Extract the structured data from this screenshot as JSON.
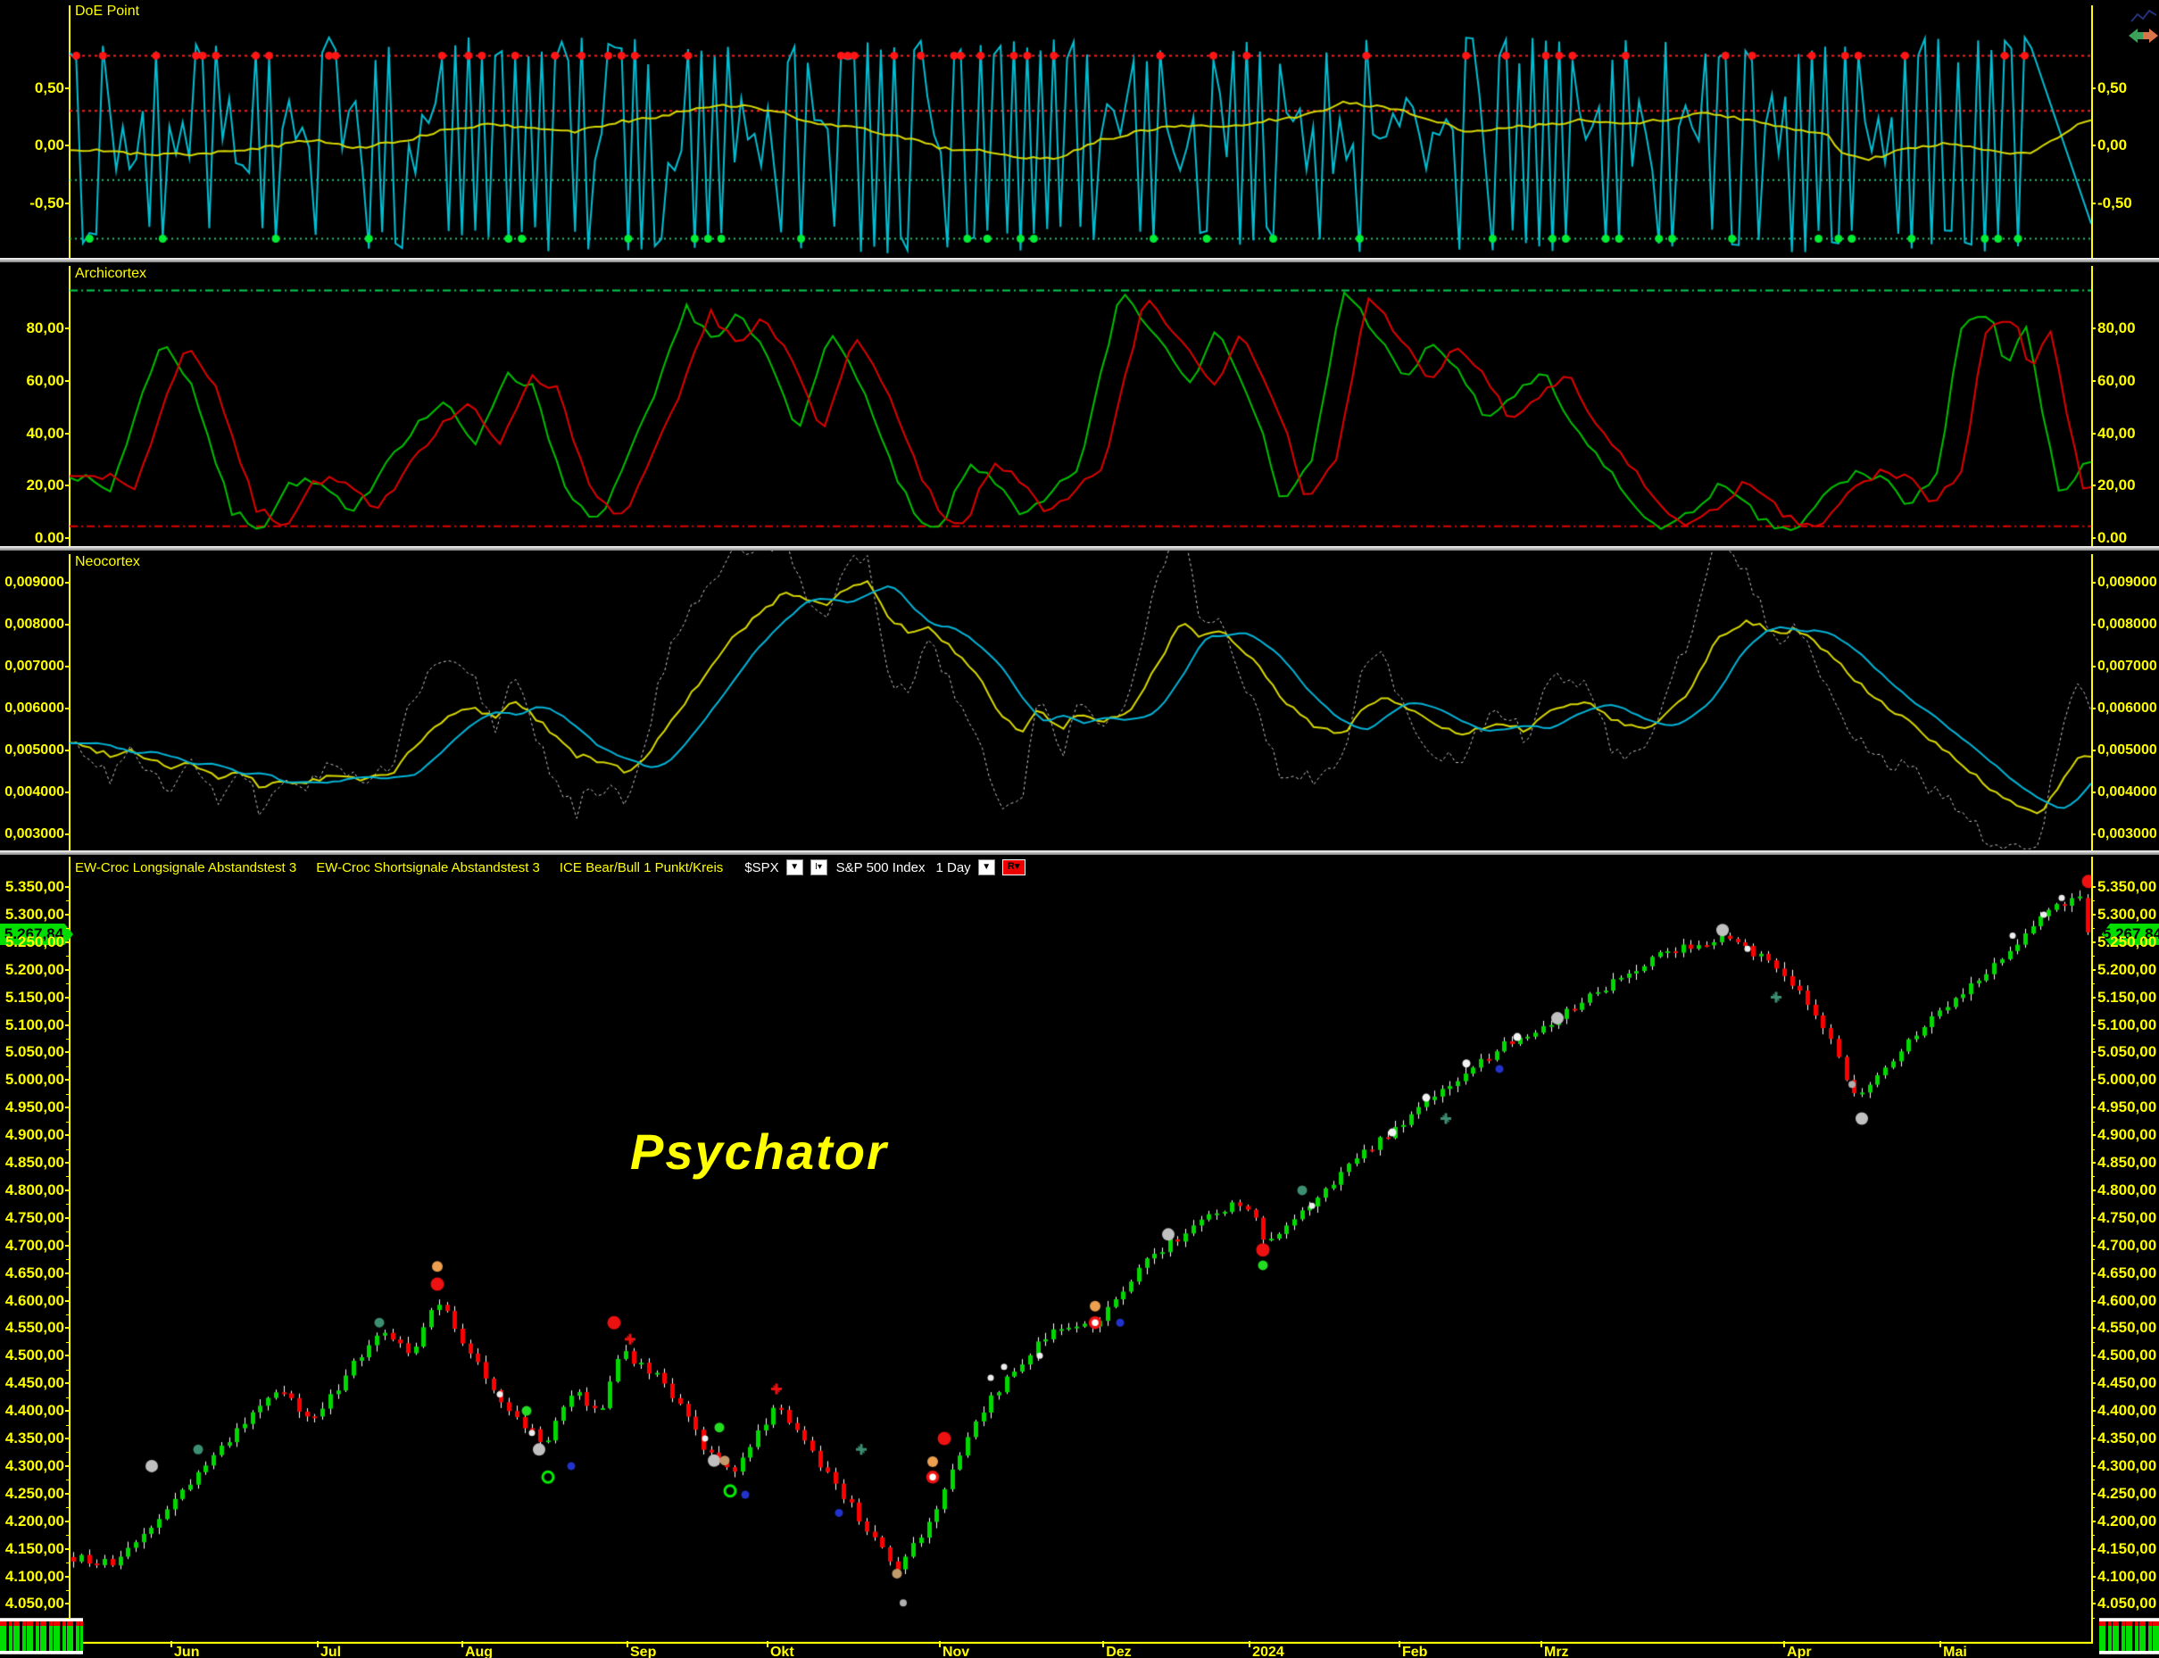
{
  "app": {
    "watermark": "Psychator",
    "last_price_tag": "5.267,84",
    "accent_colors": {
      "axis_yellow": "#ffff00",
      "cyan_line": "#00bfd4",
      "yellow_line": "#d8d800",
      "green_line": "#00c800",
      "red_line": "#e00000",
      "gray_dashed": "#c0c0c0",
      "candle_up": "#00d800",
      "candle_down": "#ff0000",
      "wick": "#ffffff",
      "tag_green": "#00dd00",
      "divider_gray": "#b9b9b9"
    }
  },
  "panel_doe": {
    "title": "DoE Point",
    "y_labels": [
      "0,50",
      "0,00",
      "-0,50"
    ],
    "y_values": [
      0.5,
      0.0,
      -0.5
    ],
    "upper_bands": [
      0.78,
      0.3
    ],
    "lower_bands": [
      -0.3,
      -0.81
    ]
  },
  "panel_archicortex": {
    "title": "Archicortex",
    "y_labels": [
      "80,00",
      "60,00",
      "40,00",
      "20,00",
      "0.00"
    ],
    "y_values": [
      80,
      60,
      40,
      20,
      0
    ],
    "upper_band": 94.5,
    "lower_band": 4.5
  },
  "panel_neocortex": {
    "title": "Neocortex",
    "y_labels": [
      "0,009000",
      "0,008000",
      "0,007000",
      "0,006000",
      "0,005000",
      "0,004000",
      "0,003000"
    ],
    "y_values": [
      0.009,
      0.008,
      0.007,
      0.006,
      0.005,
      0.004,
      0.003
    ]
  },
  "panel_main": {
    "header": {
      "study1": "EW-Croc Longsignale Abstandstest 3",
      "study2": "EW-Croc Shortsignale Abstandstest 3",
      "study3": "ICE Bear/Bull 1 Punkt/Kreis",
      "symbol": "$SPX",
      "index_name": "S&P 500 Index",
      "period": "1 Day",
      "r_button": "R",
      "dropdown_glyph": "▼",
      "i_button": "I▾"
    },
    "y_labels": [
      "5.350,00",
      "5.300,00",
      "5.250,00",
      "5.200,00",
      "5.150,00",
      "5.100,00",
      "5.050,00",
      "5.000,00",
      "4.950,00",
      "4.900,00",
      "4.850,00",
      "4.800,00",
      "4.750,00",
      "4.700,00",
      "4.650,00",
      "4.600,00",
      "4.550,00",
      "4.500,00",
      "4.450,00",
      "4.400,00",
      "4.350,00",
      "4.300,00",
      "4.250,00",
      "4.200,00",
      "4.150,00",
      "4.100,00",
      "4.050,00"
    ],
    "y_values": [
      5350,
      5300,
      5250,
      5200,
      5150,
      5100,
      5050,
      5000,
      4950,
      4900,
      4850,
      4800,
      4750,
      4700,
      4650,
      4600,
      4550,
      4500,
      4450,
      4400,
      4350,
      4300,
      4250,
      4200,
      4150,
      4100,
      4050
    ],
    "months": [
      {
        "label": "Jun",
        "f": 0.0499
      },
      {
        "label": "Jul",
        "f": 0.1223
      },
      {
        "label": "Aug",
        "f": 0.1938
      },
      {
        "label": "Sep",
        "f": 0.2755
      },
      {
        "label": "Okt",
        "f": 0.3448
      },
      {
        "label": "Nov",
        "f": 0.43
      },
      {
        "label": "Dez",
        "f": 0.5109
      },
      {
        "label": "2024",
        "f": 0.5833
      },
      {
        "label": "Feb",
        "f": 0.6574
      },
      {
        "label": "Mrz",
        "f": 0.7276
      },
      {
        "label": "Apr",
        "f": 0.8477
      },
      {
        "label": "Mai",
        "f": 0.925
      }
    ]
  },
  "legend_rows": [
    {
      "color": "#ffffff",
      "h": 3
    },
    {
      "color": "#ee0000",
      "h": 5
    },
    {
      "color": "#00dd00",
      "h": 5
    },
    {
      "color": "#00dd00",
      "h": 5
    },
    {
      "color": "#00dd00",
      "h": 4
    },
    {
      "color": "#00dd00",
      "h": 5
    },
    {
      "color": "#00dd00",
      "h": 4
    },
    {
      "color": "#00dd00",
      "h": 5
    },
    {
      "color": "#ffffff",
      "h": 3
    }
  ],
  "chart_data": [
    {
      "type": "line",
      "title": "DoE Point",
      "ylim": [
        -0.95,
        1.05
      ],
      "bands": {
        "red_dotted": [
          0.78,
          0.3
        ],
        "green_dotted": [
          -0.3,
          -0.81
        ]
      },
      "series": [
        {
          "name": "doe-fast-cyan",
          "style": "jagged-oscillator",
          "range": [
            -0.92,
            1.0
          ]
        },
        {
          "name": "doe-slow-yellow",
          "anchors_f": [
            0,
            0.03,
            0.06,
            0.09,
            0.12,
            0.14,
            0.16,
            0.19,
            0.21,
            0.23,
            0.25,
            0.27,
            0.29,
            0.31,
            0.33,
            0.35,
            0.37,
            0.39,
            0.41,
            0.43,
            0.45,
            0.47,
            0.49,
            0.51,
            0.53,
            0.55,
            0.57,
            0.59,
            0.61,
            0.63,
            0.65,
            0.67,
            0.69,
            0.71,
            0.73,
            0.75,
            0.77,
            0.79,
            0.81,
            0.83,
            0.85,
            0.87,
            0.875,
            0.89,
            0.91,
            0.93,
            0.95,
            0.97,
            0.99,
            1
          ],
          "anchors_v": [
            -0.03,
            -0.07,
            -0.08,
            -0.04,
            0.05,
            -0.02,
            0.02,
            0.15,
            0.18,
            0.15,
            0.12,
            0.2,
            0.25,
            0.32,
            0.35,
            0.3,
            0.18,
            0.15,
            0.08,
            -0.02,
            -0.05,
            -0.12,
            -0.1,
            0.05,
            0.12,
            0.18,
            0.15,
            0.21,
            0.25,
            0.37,
            0.34,
            0.25,
            0.12,
            0.15,
            0.18,
            0.22,
            0.19,
            0.23,
            0.28,
            0.22,
            0.15,
            0.1,
            -0.05,
            -0.12,
            -0.02,
            0.02,
            -0.05,
            -0.08,
            0.15,
            0.22
          ]
        },
        {
          "name": "signal-dots",
          "red_dot_level": 0.78,
          "green_dot_level": -0.81
        }
      ]
    },
    {
      "type": "line",
      "title": "Archicortex",
      "ylim": [
        0,
        105
      ],
      "bands": {
        "green_dashdot": 94.5,
        "red_dashdot": 4.5
      },
      "series": [
        {
          "name": "archi-green",
          "anchors_f": [
            0,
            0.02,
            0.045,
            0.06,
            0.08,
            0.095,
            0.11,
            0.125,
            0.14,
            0.155,
            0.17,
            0.185,
            0.2,
            0.215,
            0.23,
            0.245,
            0.26,
            0.275,
            0.29,
            0.305,
            0.32,
            0.33,
            0.345,
            0.36,
            0.375,
            0.39,
            0.405,
            0.42,
            0.43,
            0.445,
            0.455,
            0.47,
            0.48,
            0.5,
            0.52,
            0.53,
            0.545,
            0.555,
            0.565,
            0.575,
            0.59,
            0.6,
            0.615,
            0.63,
            0.645,
            0.66,
            0.675,
            0.69,
            0.7,
            0.715,
            0.73,
            0.745,
            0.76,
            0.775,
            0.79,
            0.8,
            0.815,
            0.825,
            0.84,
            0.855,
            0.87,
            0.885,
            0.9,
            0.91,
            0.925,
            0.935,
            0.95,
            0.958,
            0.968,
            0.978,
            0.985,
            0.995,
            1
          ],
          "anchors_v": [
            25,
            18,
            75,
            60,
            10,
            4,
            22,
            20,
            8,
            28,
            42,
            52,
            35,
            62,
            58,
            18,
            5,
            28,
            55,
            88,
            75,
            85,
            70,
            40,
            78,
            62,
            30,
            5,
            3,
            28,
            25,
            8,
            12,
            28,
            95,
            85,
            70,
            60,
            78,
            70,
            40,
            12,
            30,
            95,
            80,
            60,
            75,
            60,
            45,
            55,
            62,
            40,
            28,
            10,
            4,
            8,
            20,
            15,
            5,
            3,
            18,
            25,
            22,
            10,
            28,
            80,
            85,
            65,
            80,
            40,
            12,
            30,
            28
          ]
        },
        {
          "name": "archi-red",
          "derived": "lag of green ~3 bars"
        }
      ]
    },
    {
      "type": "line",
      "title": "Neocortex",
      "ylim": [
        0.0027,
        0.0097
      ],
      "series": [
        {
          "name": "neo-yellow",
          "anchors_f": [
            0,
            0.02,
            0.03,
            0.05,
            0.06,
            0.075,
            0.085,
            0.095,
            0.105,
            0.115,
            0.13,
            0.145,
            0.16,
            0.175,
            0.19,
            0.2,
            0.21,
            0.22,
            0.235,
            0.25,
            0.265,
            0.275,
            0.285,
            0.3,
            0.315,
            0.33,
            0.345,
            0.355,
            0.365,
            0.375,
            0.385,
            0.395,
            0.405,
            0.415,
            0.425,
            0.435,
            0.45,
            0.46,
            0.47,
            0.48,
            0.49,
            0.5,
            0.51,
            0.525,
            0.54,
            0.55,
            0.56,
            0.57,
            0.585,
            0.6,
            0.615,
            0.63,
            0.64,
            0.65,
            0.665,
            0.68,
            0.69,
            0.705,
            0.72,
            0.735,
            0.75,
            0.765,
            0.78,
            0.8,
            0.815,
            0.83,
            0.845,
            0.855,
            0.87,
            0.885,
            0.9,
            0.915,
            0.93,
            0.945,
            0.955,
            0.965,
            0.975,
            0.985,
            0.995
          ],
          "anchors_v": [
            5.2,
            4.9,
            5.0,
            4.6,
            4.7,
            4.3,
            4.5,
            4.1,
            4.3,
            4.2,
            4.4,
            4.3,
            4.5,
            5.3,
            5.9,
            6.0,
            5.8,
            6.2,
            5.6,
            4.9,
            4.7,
            4.5,
            4.8,
            5.9,
            6.8,
            7.8,
            8.4,
            8.8,
            8.6,
            8.5,
            8.9,
            9.0,
            8.2,
            7.8,
            7.9,
            7.5,
            6.7,
            5.9,
            5.4,
            6.0,
            5.5,
            5.9,
            5.6,
            6.0,
            7.2,
            8.1,
            7.7,
            7.9,
            7.2,
            6.2,
            5.6,
            5.4,
            6.0,
            6.3,
            5.9,
            5.5,
            5.4,
            5.6,
            5.5,
            6.0,
            6.2,
            5.7,
            5.5,
            6.3,
            7.7,
            8.1,
            7.8,
            7.9,
            7.3,
            6.6,
            6.0,
            5.5,
            4.9,
            4.3,
            3.9,
            3.6,
            3.5,
            4.2,
            4.9
          ],
          "unit": "x0.001"
        },
        {
          "name": "neo-cyan",
          "derived": "smoothed/lagged yellow"
        },
        {
          "name": "neo-band-dashed",
          "derived": "amplified envelope, gray dashed"
        }
      ]
    },
    {
      "type": "candlestick",
      "symbol": "$SPX",
      "period": "1 Day",
      "last_close": 5267.84,
      "ylim": [
        3980,
        5360
      ],
      "n_bars": 260,
      "price_anchors_x": [
        78,
        130,
        230,
        310,
        350,
        425,
        460,
        490,
        530,
        570,
        610,
        645,
        670,
        695,
        745,
        790,
        820,
        870,
        930,
        1005,
        1050,
        1090,
        1130,
        1180,
        1230,
        1290,
        1350,
        1395,
        1420,
        1460,
        1520,
        1570,
        1630,
        1690,
        1730,
        1800,
        1860,
        1930,
        1990,
        2040,
        2080,
        2130,
        2175,
        2240,
        2300,
        2330,
        2343
      ],
      "price_anchors_p": [
        4135,
        4120,
        4300,
        4440,
        4380,
        4550,
        4500,
        4600,
        4500,
        4400,
        4340,
        4440,
        4390,
        4510,
        4450,
        4330,
        4290,
        4410,
        4280,
        4110,
        4220,
        4380,
        4460,
        4550,
        4560,
        4680,
        4750,
        4780,
        4700,
        4760,
        4860,
        4920,
        5000,
        5070,
        5100,
        5170,
        5230,
        5260,
        5210,
        5110,
        4960,
        5060,
        5130,
        5220,
        5310,
        5340,
        5268
      ],
      "markers": [
        {
          "x": 170,
          "p": 4300,
          "t": "gray-lg"
        },
        {
          "x": 222,
          "p": 4330,
          "t": "teal"
        },
        {
          "x": 425,
          "p": 4560,
          "t": "teal"
        },
        {
          "x": 490,
          "p": 4630,
          "t": "red-lg"
        },
        {
          "x": 490,
          "p": 4662,
          "t": "orange"
        },
        {
          "x": 560,
          "p": 4430,
          "t": "white-sm"
        },
        {
          "x": 590,
          "p": 4400,
          "t": "green-dot"
        },
        {
          "x": 596,
          "p": 4360,
          "t": "white-sm"
        },
        {
          "x": 604,
          "p": 4330,
          "t": "gray-lg"
        },
        {
          "x": 614,
          "p": 4280,
          "t": "green-ring"
        },
        {
          "x": 640,
          "p": 4300,
          "t": "blue"
        },
        {
          "x": 688,
          "p": 4560,
          "t": "red-lg"
        },
        {
          "x": 706,
          "p": 4530,
          "t": "red-cross"
        },
        {
          "x": 790,
          "p": 4350,
          "t": "white-sm"
        },
        {
          "x": 800,
          "p": 4310,
          "t": "gray-lg"
        },
        {
          "x": 812,
          "p": 4310,
          "t": "tan"
        },
        {
          "x": 806,
          "p": 4370,
          "t": "green-dot"
        },
        {
          "x": 818,
          "p": 4255,
          "t": "green-ring"
        },
        {
          "x": 835,
          "p": 4248,
          "t": "blue"
        },
        {
          "x": 870,
          "p": 4440,
          "t": "red-cross"
        },
        {
          "x": 940,
          "p": 4215,
          "t": "blue"
        },
        {
          "x": 965,
          "p": 4330,
          "t": "teal-cross"
        },
        {
          "x": 1005,
          "p": 4105,
          "t": "tan"
        },
        {
          "x": 1012,
          "p": 4052,
          "t": "gray-sm"
        },
        {
          "x": 1045,
          "p": 4280,
          "t": "red-ring"
        },
        {
          "x": 1045,
          "p": 4308,
          "t": "orange"
        },
        {
          "x": 1058,
          "p": 4350,
          "t": "red-lg"
        },
        {
          "x": 1110,
          "p": 4460,
          "t": "white-sm"
        },
        {
          "x": 1125,
          "p": 4480,
          "t": "white-sm"
        },
        {
          "x": 1165,
          "p": 4500,
          "t": "white-sm"
        },
        {
          "x": 1227,
          "p": 4560,
          "t": "red-ring"
        },
        {
          "x": 1227,
          "p": 4590,
          "t": "orange"
        },
        {
          "x": 1255,
          "p": 4560,
          "t": "blue"
        },
        {
          "x": 1309,
          "p": 4720,
          "t": "gray-lg"
        },
        {
          "x": 1415,
          "p": 4692,
          "t": "red-lg"
        },
        {
          "x": 1415,
          "p": 4664,
          "t": "green-dot"
        },
        {
          "x": 1459,
          "p": 4800,
          "t": "teal"
        },
        {
          "x": 1470,
          "p": 4772,
          "t": "white-sm"
        },
        {
          "x": 1560,
          "p": 4905,
          "t": "white-dot"
        },
        {
          "x": 1598,
          "p": 4968,
          "t": "white-dot"
        },
        {
          "x": 1620,
          "p": 4930,
          "t": "teal-cross"
        },
        {
          "x": 1643,
          "p": 5030,
          "t": "white-dot"
        },
        {
          "x": 1680,
          "p": 5020,
          "t": "blue"
        },
        {
          "x": 1700,
          "p": 5078,
          "t": "white-dot"
        },
        {
          "x": 1745,
          "p": 5112,
          "t": "gray-lg"
        },
        {
          "x": 1930,
          "p": 5272,
          "t": "gray-lg"
        },
        {
          "x": 1958,
          "p": 5238,
          "t": "white-sm"
        },
        {
          "x": 1990,
          "p": 5150,
          "t": "teal-cross"
        },
        {
          "x": 2075,
          "p": 4992,
          "t": "gray-sm"
        },
        {
          "x": 2086,
          "p": 4930,
          "t": "gray-lg"
        },
        {
          "x": 2255,
          "p": 5262,
          "t": "white-sm"
        },
        {
          "x": 2290,
          "p": 5300,
          "t": "white-sm"
        },
        {
          "x": 2310,
          "p": 5330,
          "t": "white-sm"
        },
        {
          "x": 2340,
          "p": 5360,
          "t": "red-lg"
        }
      ]
    }
  ]
}
